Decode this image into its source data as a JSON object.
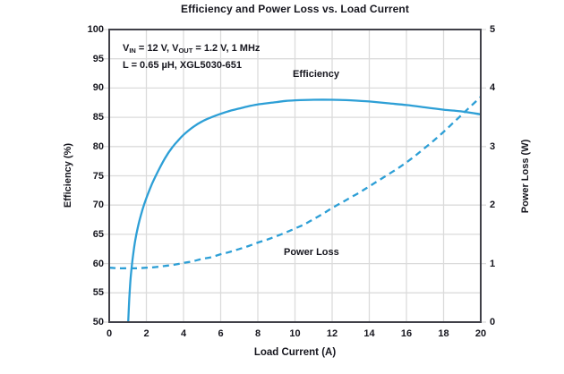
{
  "title": "Efficiency and Power Loss vs. Load Current",
  "annotation": {
    "line1": [
      {
        "t": "V"
      },
      {
        "t": "IN",
        "sub": true
      },
      {
        "t": " = 12 V, V"
      },
      {
        "t": "OUT",
        "sub": true
      },
      {
        "t": " = 1.2 V, 1 MHz"
      }
    ],
    "line2": [
      {
        "t": "L = 0.65 µH, XGL5030-651"
      }
    ]
  },
  "curve_labels": {
    "efficiency": "Efficiency",
    "power_loss": "Power Loss"
  },
  "colors": {
    "curve": "#2D9FD6",
    "grid": "#DBDBDB",
    "frame": "#404048",
    "text": "#16161E",
    "background": "#FFFFFF"
  },
  "chart_data": {
    "type": "line",
    "title": "Efficiency and Power Loss vs. Load Current",
    "xlabel": "Load Current (A)",
    "ylabel_left": "Efficiency (%)",
    "ylabel_right": "Power Loss (W)",
    "xlim": [
      0,
      20
    ],
    "xticks": [
      0,
      2,
      4,
      6,
      8,
      10,
      12,
      14,
      16,
      18,
      20
    ],
    "ylim_left": [
      50,
      100
    ],
    "yticks_left": [
      50,
      55,
      60,
      65,
      70,
      75,
      80,
      85,
      90,
      95,
      100
    ],
    "ylim_right": [
      0,
      5
    ],
    "yticks_right": [
      0,
      1,
      2,
      3,
      4,
      5
    ],
    "grid": true,
    "legend_position": "inline-curve-labels",
    "series": [
      {
        "name": "Efficiency",
        "axis": "left",
        "style": "solid",
        "points": [
          [
            1.02,
            50
          ],
          [
            1.08,
            54
          ],
          [
            1.15,
            57.5
          ],
          [
            1.25,
            60.5
          ],
          [
            1.4,
            64
          ],
          [
            1.6,
            67
          ],
          [
            1.8,
            69.3
          ],
          [
            2,
            71.2
          ],
          [
            2.3,
            73.6
          ],
          [
            2.6,
            75.6
          ],
          [
            3,
            78
          ],
          [
            3.4,
            79.9
          ],
          [
            3.7,
            81
          ],
          [
            4,
            82
          ],
          [
            4.5,
            83.3
          ],
          [
            5,
            84.3
          ],
          [
            5.5,
            85
          ],
          [
            6,
            85.6
          ],
          [
            6.5,
            86.1
          ],
          [
            7,
            86.5
          ],
          [
            7.5,
            86.9
          ],
          [
            8,
            87.2
          ],
          [
            8.5,
            87.4
          ],
          [
            9,
            87.6
          ],
          [
            9.5,
            87.8
          ],
          [
            10,
            87.9
          ],
          [
            11,
            88
          ],
          [
            12,
            88
          ],
          [
            13,
            87.9
          ],
          [
            14,
            87.7
          ],
          [
            15,
            87.4
          ],
          [
            16,
            87.1
          ],
          [
            17,
            86.7
          ],
          [
            18,
            86.3
          ],
          [
            19,
            86
          ],
          [
            20,
            85.5
          ]
        ]
      },
      {
        "name": "Power Loss",
        "axis": "right",
        "style": "dashed",
        "points": [
          [
            0,
            0.93
          ],
          [
            0.5,
            0.92
          ],
          [
            1,
            0.92
          ],
          [
            1.5,
            0.92
          ],
          [
            2,
            0.93
          ],
          [
            2.5,
            0.94
          ],
          [
            3,
            0.96
          ],
          [
            3.5,
            0.98
          ],
          [
            4,
            1.01
          ],
          [
            4.5,
            1.04
          ],
          [
            5,
            1.08
          ],
          [
            5.5,
            1.11
          ],
          [
            6,
            1.16
          ],
          [
            6.5,
            1.2
          ],
          [
            7,
            1.25
          ],
          [
            7.5,
            1.3
          ],
          [
            8,
            1.36
          ],
          [
            8.5,
            1.41
          ],
          [
            9,
            1.47
          ],
          [
            9.5,
            1.53
          ],
          [
            10,
            1.6
          ],
          [
            10.5,
            1.67
          ],
          [
            11,
            1.76
          ],
          [
            11.5,
            1.85
          ],
          [
            12,
            1.95
          ],
          [
            12.5,
            2.04
          ],
          [
            13,
            2.13
          ],
          [
            13.5,
            2.22
          ],
          [
            14,
            2.32
          ],
          [
            14.5,
            2.42
          ],
          [
            15,
            2.52
          ],
          [
            15.5,
            2.62
          ],
          [
            16,
            2.73
          ],
          [
            16.5,
            2.85
          ],
          [
            17,
            2.98
          ],
          [
            17.5,
            3.11
          ],
          [
            18,
            3.25
          ],
          [
            18.5,
            3.4
          ],
          [
            19,
            3.55
          ],
          [
            19.5,
            3.7
          ],
          [
            20,
            3.85
          ]
        ]
      }
    ]
  }
}
